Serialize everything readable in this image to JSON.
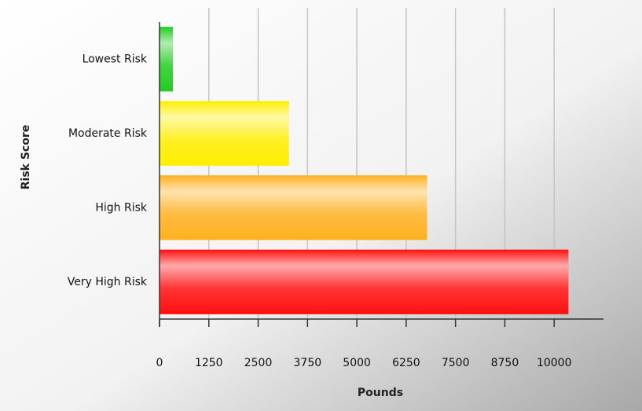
{
  "chart_data": {
    "type": "hbar",
    "xlabel": "Pounds",
    "ylabel": "Risk Score",
    "categories": [
      "Lowest Risk",
      "Moderate Risk",
      "High Risk",
      "Very High Risk"
    ],
    "values": [
      340,
      3280,
      6780,
      10360
    ],
    "colors": [
      "#22cc22",
      "#ffee00",
      "#ffb020",
      "#ff1010"
    ],
    "xlim": [
      0,
      11250
    ],
    "xticks": [
      0,
      1250,
      2500,
      3750,
      5000,
      6250,
      7500,
      8750,
      10000
    ],
    "grid": true
  }
}
